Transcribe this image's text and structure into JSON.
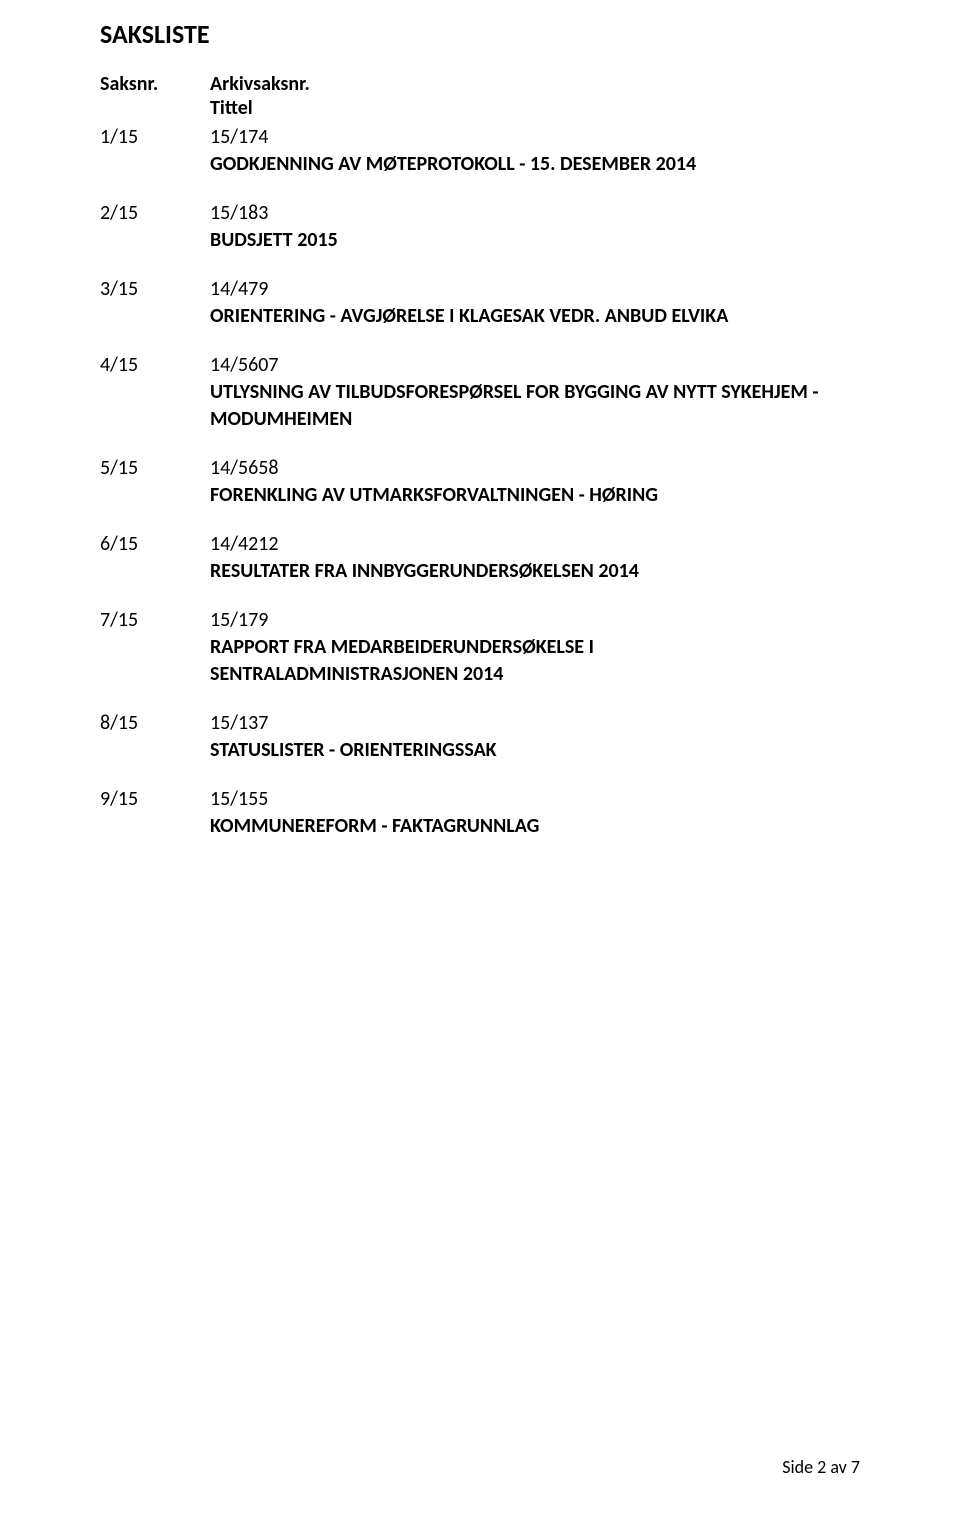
{
  "page_title": "SAKSLISTE",
  "headers": {
    "saksnr": "Saksnr.",
    "arkivsaksnr": "Arkivsaksnr.",
    "tittel": "Tittel"
  },
  "items": [
    {
      "saksnr": "1/15",
      "arkiv": "15/174",
      "title_lines": [
        "GODKJENNING AV MØTEPROTOKOLL - 15. DESEMBER 2014"
      ]
    },
    {
      "saksnr": "2/15",
      "arkiv": "15/183",
      "title_lines": [
        "BUDSJETT 2015"
      ]
    },
    {
      "saksnr": "3/15",
      "arkiv": "14/479",
      "title_lines": [
        "ORIENTERING - AVGJØRELSE I KLAGESAK VEDR. ANBUD ELVIKA"
      ]
    },
    {
      "saksnr": "4/15",
      "arkiv": "14/5607",
      "title_lines": [
        "UTLYSNING AV TILBUDSFORESPØRSEL FOR BYGGING AV NYTT SYKEHJEM -",
        "MODUMHEIMEN"
      ]
    },
    {
      "saksnr": "5/15",
      "arkiv": "14/5658",
      "title_lines": [
        "FORENKLING AV UTMARKSFORVALTNINGEN - HØRING"
      ]
    },
    {
      "saksnr": "6/15",
      "arkiv": "14/4212",
      "title_lines": [
        "RESULTATER FRA INNBYGGERUNDERSØKELSEN 2014"
      ]
    },
    {
      "saksnr": "7/15",
      "arkiv": "15/179",
      "title_lines": [
        "RAPPORT FRA MEDARBEIDERUNDERSØKELSE I",
        "SENTRALADMINISTRASJONEN 2014"
      ]
    },
    {
      "saksnr": "8/15",
      "arkiv": "15/137",
      "title_lines": [
        "STATUSLISTER - ORIENTERINGSSAK"
      ]
    },
    {
      "saksnr": "9/15",
      "arkiv": "15/155",
      "title_lines": [
        "KOMMUNEREFORM - FAKTAGRUNNLAG"
      ]
    }
  ],
  "footer": "Side 2 av 7",
  "colors": {
    "text": "#000000",
    "background": "#ffffff"
  },
  "fonts": {
    "family": "Calibri",
    "title_size_pt": 20,
    "body_size_pt": 15
  }
}
